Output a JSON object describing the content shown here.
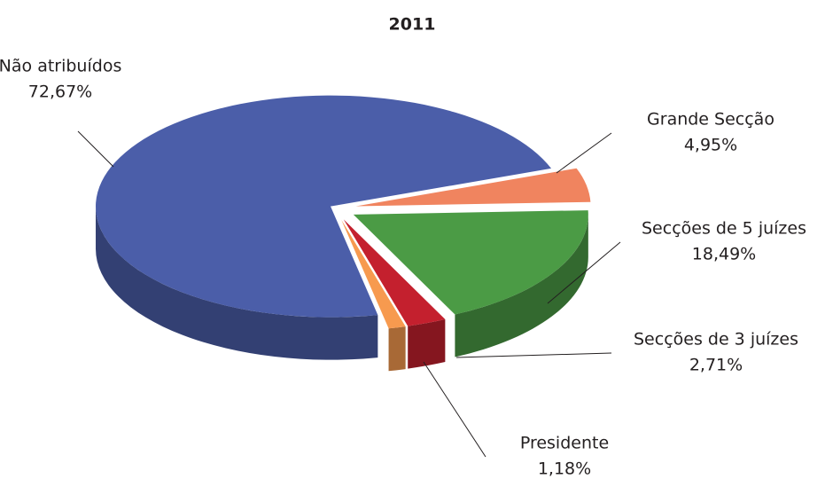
{
  "chart_data": {
    "type": "pie",
    "title": "2011",
    "categories": [
      "Grande Secção",
      "Secções de 5 juízes",
      "Secções de 3 juízes",
      "Presidente",
      "Não atribuídos"
    ],
    "values": [
      4.95,
      18.49,
      2.71,
      1.18,
      72.67
    ],
    "value_labels": [
      "4,95%",
      "18,49%",
      "2,71%",
      "1,18%",
      "72,67%"
    ],
    "colors": [
      "#f0845f",
      "#4b9b45",
      "#c4202e",
      "#f79a4f",
      "#4b5ea9"
    ]
  }
}
